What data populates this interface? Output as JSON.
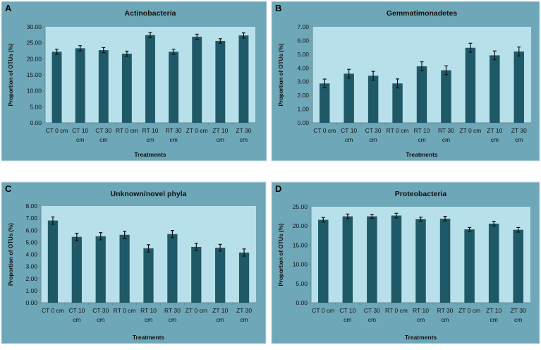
{
  "colors": {
    "panel_bg": "#6ea7b8",
    "plot_bg": "#b7e0ea",
    "bar": "#1f5968",
    "error_bar": "#111111",
    "panel_border": "#c9dde3"
  },
  "chart_data": [
    {
      "panel_letter": "A",
      "type": "bar",
      "title": "Actinobacteria",
      "xlabel": "Treatments",
      "ylabel": "Proportion of OTUs (%)",
      "categories": [
        "CT 0 cm",
        "CT 10 cm",
        "CT 30 cm",
        "RT 0 cm",
        "RT 10 cm",
        "RT 30 cm",
        "ZT 0 cm",
        "ZT 10 cm",
        "ZT 30 cm"
      ],
      "values": [
        22.2,
        23.3,
        22.7,
        21.6,
        27.4,
        22.2,
        26.9,
        25.6,
        27.3
      ],
      "errors": [
        0.8,
        0.8,
        0.8,
        0.8,
        0.8,
        0.8,
        0.8,
        0.7,
        0.8
      ],
      "ylim": [
        0,
        30
      ],
      "yticks": [
        "0.00",
        "5.00",
        "10.00",
        "15.00",
        "20.00",
        "25.00",
        "30.00"
      ],
      "grid": false
    },
    {
      "panel_letter": "B",
      "type": "bar",
      "title": "Gemmatimonadetes",
      "xlabel": "Treatments",
      "ylabel": "Proportion of OTUs (%)",
      "categories": [
        "CT 0 cm",
        "CT 10 cm",
        "CT 30 cm",
        "RT 0 cm",
        "RT 10 cm",
        "RT 30 cm",
        "ZT 0 cm",
        "ZT 10 cm",
        "ZT 30 cm"
      ],
      "values": [
        2.87,
        3.58,
        3.43,
        2.87,
        4.12,
        3.83,
        5.47,
        4.92,
        5.2
      ],
      "errors": [
        0.32,
        0.32,
        0.32,
        0.33,
        0.33,
        0.32,
        0.33,
        0.32,
        0.33
      ],
      "ylim": [
        0,
        7
      ],
      "yticks": [
        "0.00",
        "1.00",
        "2.00",
        "3.00",
        "4.00",
        "5.00",
        "6.00",
        "7.00"
      ],
      "grid": false
    },
    {
      "panel_letter": "C",
      "type": "bar",
      "title": "Unknown/novel phyla",
      "xlabel": "Treatments",
      "ylabel": "Proportion of OTUs (%)",
      "categories": [
        "CT 0 cm",
        "CT 10 cm",
        "CT 30 cm",
        "RT 0 cm",
        "RT 10 cm",
        "RT 30 cm",
        "ZT 0 cm",
        "ZT 10 cm",
        "ZT 30 cm"
      ],
      "values": [
        6.8,
        5.45,
        5.5,
        5.62,
        4.5,
        5.68,
        4.62,
        4.55,
        4.15
      ],
      "errors": [
        0.3,
        0.3,
        0.3,
        0.3,
        0.3,
        0.3,
        0.3,
        0.28,
        0.3
      ],
      "ylim": [
        0,
        8
      ],
      "yticks": [
        "0.00",
        "1.00",
        "2.00",
        "3.00",
        "4.00",
        "5.00",
        "6.00",
        "7.00",
        "8.00"
      ],
      "grid": false
    },
    {
      "panel_letter": "D",
      "type": "bar",
      "title": "Proteobacteria",
      "xlabel": "Treatments",
      "ylabel": "Proportion of OTUs (%)",
      "categories": [
        "CT 0 cm",
        "CT 10 cm",
        "CT 30 cm",
        "RT 0 cm",
        "RT 10 cm",
        "RT 30 cm",
        "ZT 0 cm",
        "ZT 10 cm",
        "ZT 30 cm"
      ],
      "values": [
        21.6,
        22.5,
        22.5,
        22.7,
        21.8,
        21.9,
        19.1,
        20.6,
        19.0
      ],
      "errors": [
        0.6,
        0.6,
        0.5,
        0.6,
        0.5,
        0.6,
        0.5,
        0.6,
        0.6
      ],
      "ylim": [
        0,
        25
      ],
      "yticks": [
        "0.00",
        "5.00",
        "10.00",
        "15.00",
        "20.00",
        "25.00"
      ],
      "grid": false
    }
  ]
}
